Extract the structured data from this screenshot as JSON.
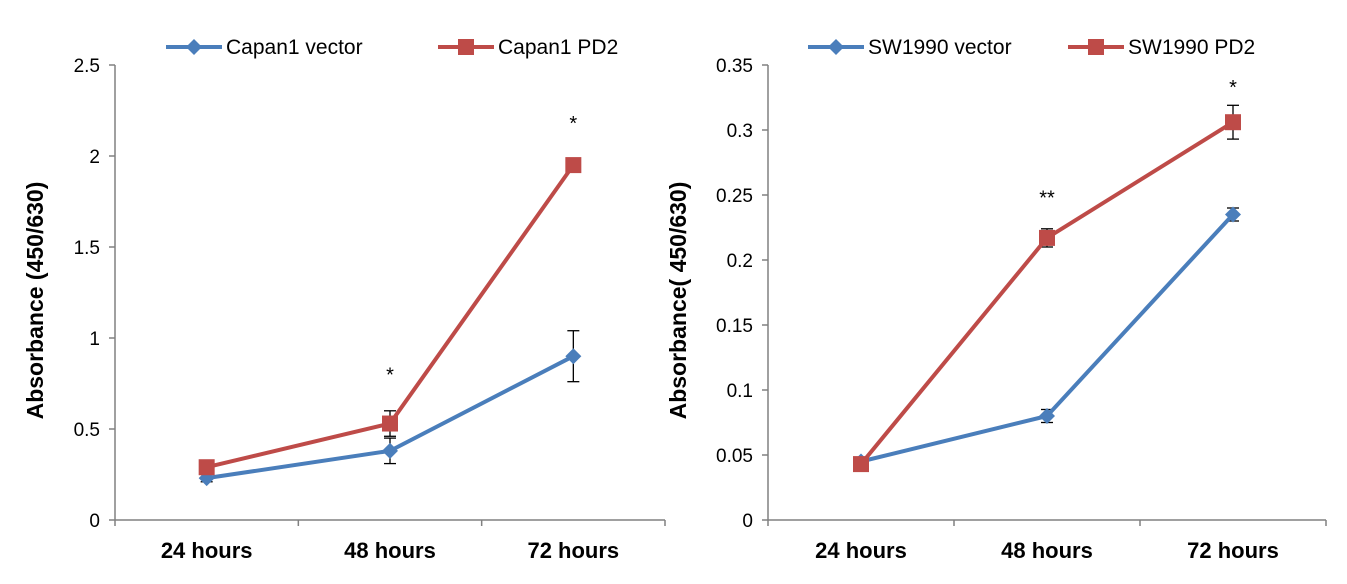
{
  "chart_data": [
    {
      "type": "line",
      "title": "",
      "xlabel": "",
      "ylabel": "Absorbance (450/630)",
      "categories": [
        "24 hours",
        "48 hours",
        "72 hours"
      ],
      "ylim": [
        0,
        2.5
      ],
      "yticks": [
        0,
        0.5,
        1,
        1.5,
        2,
        2.5
      ],
      "ytick_labels": [
        "0",
        "0.5",
        "1",
        "1.5",
        "2",
        "2.5"
      ],
      "grid": false,
      "legend_position": "top",
      "series": [
        {
          "name": "Capan1 vector",
          "marker": "diamond",
          "color": "#4a7ebb",
          "values": [
            0.23,
            0.38,
            0.9
          ],
          "errors": [
            0.02,
            0.07,
            0.14
          ]
        },
        {
          "name": "Capan1 PD2",
          "marker": "square",
          "color": "#be4b48",
          "values": [
            0.29,
            0.53,
            1.95
          ],
          "errors": [
            0.02,
            0.07,
            0.03
          ]
        }
      ],
      "annotations": [
        {
          "category": "48 hours",
          "text": "*",
          "y": 0.8
        },
        {
          "category": "72 hours",
          "text": "*",
          "y": 2.18
        }
      ]
    },
    {
      "type": "line",
      "title": "",
      "xlabel": "",
      "ylabel": "Absorbance( 450/630)",
      "categories": [
        "24 hours",
        "48 hours",
        "72 hours"
      ],
      "ylim": [
        0,
        0.35
      ],
      "yticks": [
        0,
        0.05,
        0.1,
        0.15,
        0.2,
        0.25,
        0.3,
        0.35
      ],
      "ytick_labels": [
        "0",
        "0.05",
        "0.1",
        "0.15",
        "0.2",
        "0.25",
        "0.3",
        "0.35"
      ],
      "grid": false,
      "legend_position": "top",
      "series": [
        {
          "name": "SW1990 vector",
          "marker": "diamond",
          "color": "#4a7ebb",
          "values": [
            0.045,
            0.08,
            0.235
          ],
          "errors": [
            0.002,
            0.005,
            0.005
          ]
        },
        {
          "name": "SW1990 PD2",
          "marker": "square",
          "color": "#be4b48",
          "values": [
            0.043,
            0.217,
            0.306
          ],
          "errors": [
            0.002,
            0.007,
            0.013
          ]
        }
      ],
      "annotations": [
        {
          "category": "48 hours",
          "text": "**",
          "y": 0.248
        },
        {
          "category": "72 hours",
          "text": "*",
          "y": 0.333
        }
      ]
    }
  ]
}
